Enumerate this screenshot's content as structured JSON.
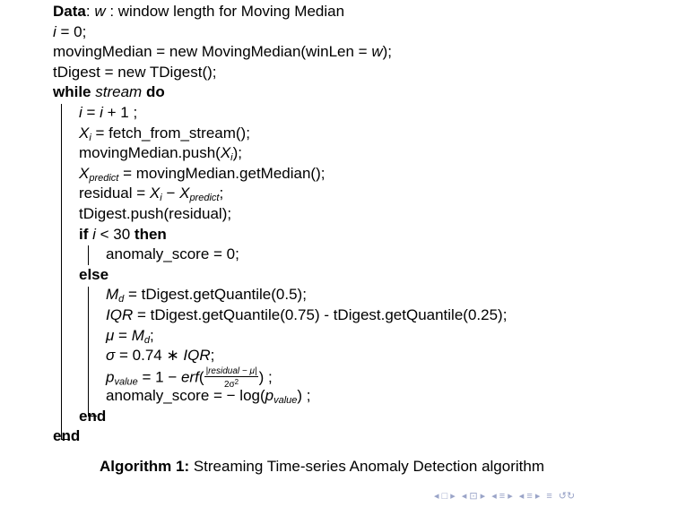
{
  "algorithm": {
    "data_label": "Data",
    "data_text_a": ": ",
    "data_var": "w",
    "data_text_b": " : window length for Moving Median",
    "l_i_init_var": "i",
    "l_i_init_rest": " = 0;",
    "l_mm_a": "movingMedian = new MovingMedian(winLen = ",
    "l_mm_var": "w",
    "l_mm_b": ");",
    "l_td": "tDigest = new TDigest();",
    "while_kw": "while",
    "while_var": "stream",
    "do_kw": "do",
    "l_inc_a": "i",
    "l_inc_b": " = ",
    "l_inc_c": "i",
    "l_inc_d": " + 1 ;",
    "l_fetch_var": "X",
    "l_fetch_sub": "i",
    "l_fetch_rest": " = fetch_from_stream();",
    "l_push_a": "movingMedian.push(",
    "l_push_var": "X",
    "l_push_sub": "i",
    "l_push_b": ");",
    "l_pred_var": "X",
    "l_pred_sub": "predict",
    "l_pred_rest": " = movingMedian.getMedian();",
    "l_res_a": "residual = ",
    "l_res_var1": "X",
    "l_res_sub1": "i",
    "l_res_b": " − ",
    "l_res_var2": "X",
    "l_res_sub2": "predict",
    "l_res_c": ";",
    "l_tdpush": "tDigest.push(residual);",
    "if_kw": "if",
    "if_var": "i",
    "if_cond": " < 30 ",
    "then_kw": "then",
    "l_anom0": "anomaly_score = 0;",
    "else_kw": "else",
    "l_md_var": "M",
    "l_md_sub": "d",
    "l_md_rest": " = tDigest.getQuantile(0.5);",
    "l_iqr_var": "IQR",
    "l_iqr_rest": " = tDigest.getQuantile(0.75) - tDigest.getQuantile(0.25);",
    "l_mu_var": "μ",
    "l_mu_b": " = ",
    "l_mu_var2": "M",
    "l_mu_sub": "d",
    "l_mu_c": ";",
    "l_sigma_var": "σ",
    "l_sigma_b": " = 0.74 ∗ ",
    "l_sigma_var2": "IQR",
    "l_sigma_c": ";",
    "l_pval_var": "p",
    "l_pval_sub": "value",
    "l_pval_b": " = 1 − ",
    "l_pval_erf": "erf",
    "l_pval_open": "(",
    "l_pval_num": "|residual − μ|",
    "l_pval_den": "2σ",
    "l_pval_den_sup": "2",
    "l_pval_close": ") ;",
    "l_score_a": "anomaly_score = − log(",
    "l_score_var": "p",
    "l_score_sub": "value",
    "l_score_b": ") ;",
    "end_kw_inner": "end",
    "end_kw_outer": "end"
  },
  "caption": {
    "label": "Algorithm 1:",
    "text": " Streaming Time-series Anomaly Detection algorithm"
  },
  "nav": {
    "first": "◂ □ ▸",
    "prev": "◂ ⊡ ▸",
    "sec": "◂ ≡ ▸",
    "sub": "◂ ≡ ▸",
    "align": "≡",
    "search": "↺↻"
  }
}
